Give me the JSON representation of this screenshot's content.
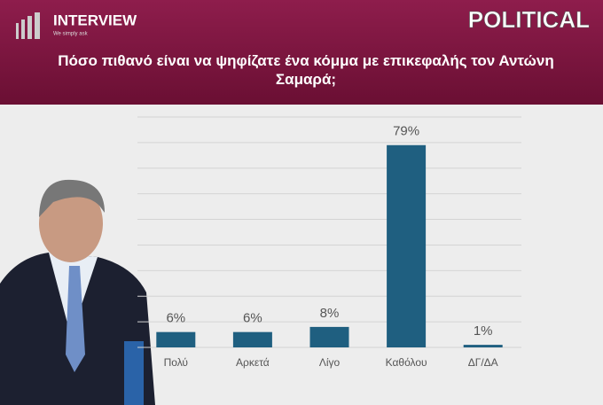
{
  "brand": {
    "name": "INTERVIEW",
    "tagline": "We simply ask",
    "section": "POLITICAL"
  },
  "chart_data": {
    "type": "bar",
    "title": "Πόσο πιθανό είναι να ψηφίζατε ένα κόμμα με επικεφαλής τον Αντώνη Σαμαρά;",
    "categories": [
      "Πολύ",
      "Αρκετά",
      "Λίγο",
      "Καθόλου",
      "ΔΓ/ΔΑ"
    ],
    "values": [
      6,
      6,
      8,
      79,
      1
    ],
    "value_labels": [
      "6%",
      "6%",
      "8%",
      "79%",
      "1%"
    ],
    "color": "#1f5f80",
    "ylim": [
      0,
      90
    ],
    "yticks": [
      0,
      10,
      20,
      30,
      40,
      50,
      60,
      70,
      80,
      90
    ],
    "grid": true
  }
}
